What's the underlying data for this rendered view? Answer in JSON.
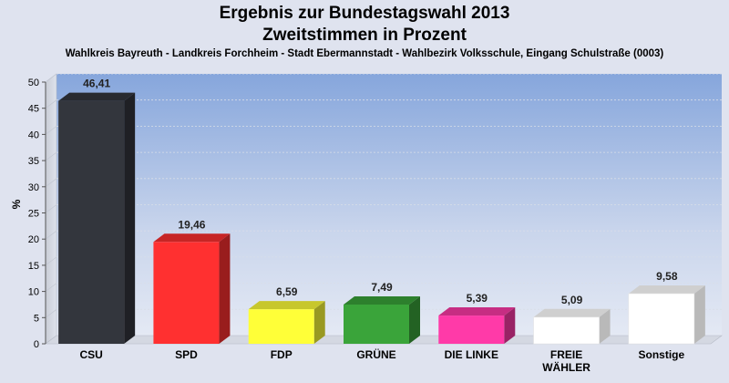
{
  "chart_data": {
    "type": "bar",
    "title": "Ergebnis zur Bundestagswahl 2013",
    "title_line2": "Zweitstimmen in Prozent",
    "subtitle": "Wahlkreis Bayreuth - Landkreis Forchheim  - Stadt Ebermannstadt - Wahlbezirk Volksschule, Eingang Schulstraße (0003)",
    "ylabel": "%",
    "xlabel": "",
    "ylim": [
      0,
      50
    ],
    "yticks": [
      0,
      5,
      10,
      15,
      20,
      25,
      30,
      35,
      40,
      45,
      50
    ],
    "categories": [
      "CSU",
      "SPD",
      "FDP",
      "GRÜNE",
      "DIE LINKE",
      "FREIE WÄHLER",
      "Sonstige"
    ],
    "category_lines": [
      [
        "CSU"
      ],
      [
        "SPD"
      ],
      [
        "FDP"
      ],
      [
        "GRÜNE"
      ],
      [
        "DIE LINKE"
      ],
      [
        "FREIE",
        "WÄHLER"
      ],
      [
        "Sonstige"
      ]
    ],
    "values": [
      46.41,
      19.46,
      6.59,
      7.49,
      5.39,
      5.09,
      9.58
    ],
    "value_labels": [
      "46,41",
      "19,46",
      "6,59",
      "7,49",
      "5,39",
      "5,09",
      "9,58"
    ],
    "colors": [
      "#33363d",
      "#ff3030",
      "#ffff38",
      "#3aa43a",
      "#ff3aa8",
      "#ffffff",
      "#ffffff"
    ],
    "grid": true
  }
}
